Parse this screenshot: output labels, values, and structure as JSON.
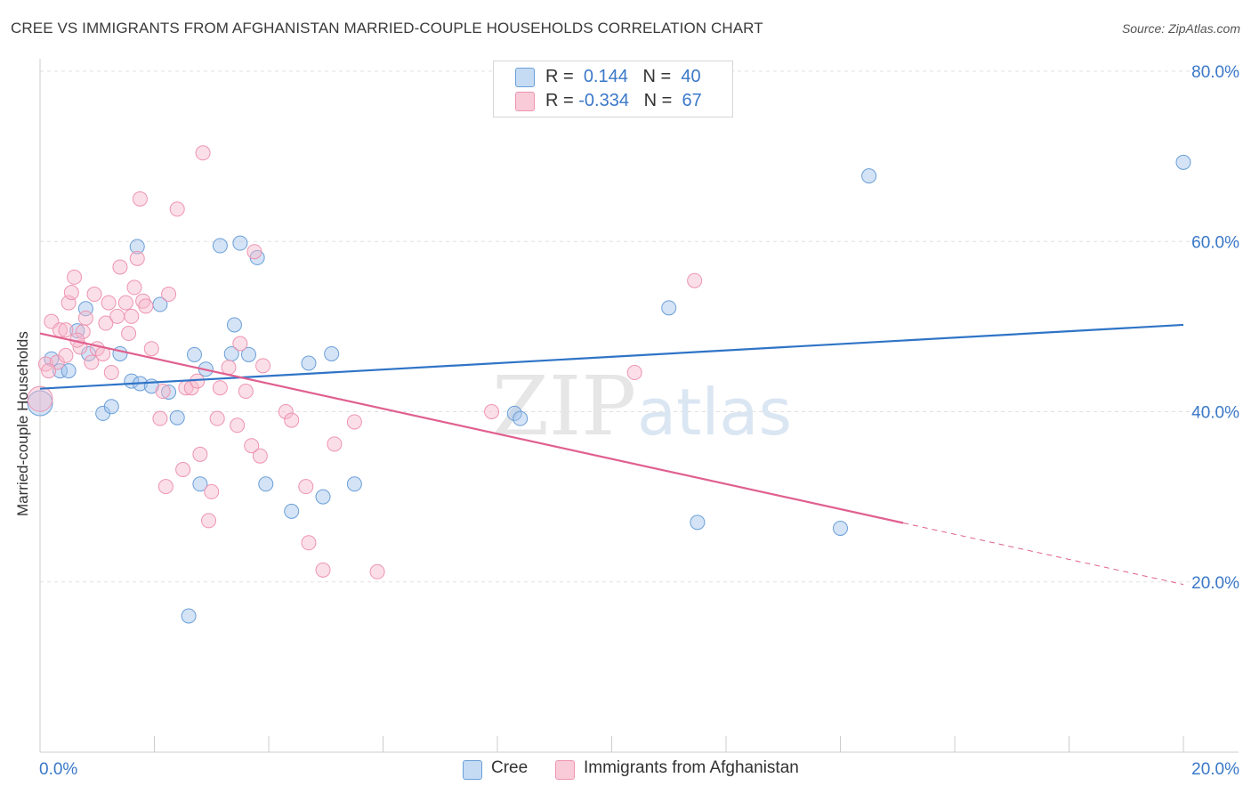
{
  "chart_data": {
    "type": "scatter",
    "title": "CREE VS IMMIGRANTS FROM AFGHANISTAN MARRIED-COUPLE HOUSEHOLDS CORRELATION CHART",
    "source": "Source: ZipAtlas.com",
    "xlabel": "",
    "ylabel": "Married-couple Households",
    "xlim": [
      0,
      20
    ],
    "ylim": [
      0,
      80
    ],
    "x_tick_labels": [
      "0.0%",
      "20.0%"
    ],
    "y_tick_labels": [
      "20.0%",
      "40.0%",
      "60.0%",
      "80.0%"
    ],
    "y_ticks": [
      20,
      40,
      60,
      80
    ],
    "legend": {
      "rows": [
        {
          "r_label": "R =",
          "r_value": "0.144",
          "n_label": "N =",
          "n_value": "40"
        },
        {
          "r_label": "R =",
          "r_value": "-0.334",
          "n_label": "N =",
          "n_value": "67"
        }
      ]
    },
    "watermark": "ZIPatlas",
    "series": [
      {
        "name": "Cree",
        "color": "#9fc2ea",
        "stroke": "#6a9fd8",
        "line_color": "#2f74c7",
        "trend": {
          "x": [
            0,
            20
          ],
          "y": [
            42.7,
            50.2
          ],
          "dashed_from": null
        },
        "points": [
          {
            "x": 0.0,
            "y": 41.0
          },
          {
            "x": 0.2,
            "y": 46.2
          },
          {
            "x": 0.35,
            "y": 44.8
          },
          {
            "x": 0.5,
            "y": 44.8
          },
          {
            "x": 0.65,
            "y": 49.5
          },
          {
            "x": 0.8,
            "y": 52.1
          },
          {
            "x": 1.1,
            "y": 39.8
          },
          {
            "x": 1.25,
            "y": 40.6
          },
          {
            "x": 1.4,
            "y": 46.8
          },
          {
            "x": 1.6,
            "y": 43.6
          },
          {
            "x": 1.7,
            "y": 59.4
          },
          {
            "x": 1.75,
            "y": 43.3
          },
          {
            "x": 1.95,
            "y": 43.0
          },
          {
            "x": 2.1,
            "y": 52.6
          },
          {
            "x": 2.25,
            "y": 42.3
          },
          {
            "x": 2.4,
            "y": 39.3
          },
          {
            "x": 2.6,
            "y": 16.0
          },
          {
            "x": 2.7,
            "y": 46.7
          },
          {
            "x": 2.8,
            "y": 31.5
          },
          {
            "x": 2.9,
            "y": 45.0
          },
          {
            "x": 3.15,
            "y": 59.5
          },
          {
            "x": 3.35,
            "y": 46.8
          },
          {
            "x": 3.4,
            "y": 50.2
          },
          {
            "x": 3.5,
            "y": 59.8
          },
          {
            "x": 3.65,
            "y": 46.7
          },
          {
            "x": 3.8,
            "y": 58.1
          },
          {
            "x": 3.95,
            "y": 31.5
          },
          {
            "x": 4.4,
            "y": 28.3
          },
          {
            "x": 4.7,
            "y": 45.7
          },
          {
            "x": 4.95,
            "y": 30.0
          },
          {
            "x": 5.1,
            "y": 46.8
          },
          {
            "x": 5.5,
            "y": 31.5
          },
          {
            "x": 8.3,
            "y": 39.8
          },
          {
            "x": 8.4,
            "y": 39.2
          },
          {
            "x": 11.0,
            "y": 52.2
          },
          {
            "x": 11.5,
            "y": 27.0
          },
          {
            "x": 14.0,
            "y": 26.3
          },
          {
            "x": 14.5,
            "y": 67.7
          },
          {
            "x": 20.0,
            "y": 69.3
          },
          {
            "x": 0.85,
            "y": 46.8
          }
        ]
      },
      {
        "name": "Immigrants from Afghanistan",
        "color": "#f7b9cc",
        "stroke": "#ee94b0",
        "line_color": "#e0608f",
        "trend": {
          "x": [
            0,
            20
          ],
          "y": [
            49.2,
            19.7
          ],
          "dashed_from": 15.1
        },
        "points": [
          {
            "x": 0.0,
            "y": 41.5
          },
          {
            "x": 0.1,
            "y": 45.6
          },
          {
            "x": 0.2,
            "y": 50.6
          },
          {
            "x": 0.3,
            "y": 45.8
          },
          {
            "x": 0.35,
            "y": 49.6
          },
          {
            "x": 0.45,
            "y": 49.6
          },
          {
            "x": 0.45,
            "y": 46.6
          },
          {
            "x": 0.5,
            "y": 52.8
          },
          {
            "x": 0.55,
            "y": 54.0
          },
          {
            "x": 0.6,
            "y": 55.8
          },
          {
            "x": 0.7,
            "y": 47.6
          },
          {
            "x": 0.75,
            "y": 49.4
          },
          {
            "x": 0.8,
            "y": 51.0
          },
          {
            "x": 0.9,
            "y": 45.8
          },
          {
            "x": 0.95,
            "y": 53.8
          },
          {
            "x": 1.0,
            "y": 47.4
          },
          {
            "x": 1.1,
            "y": 46.8
          },
          {
            "x": 1.15,
            "y": 50.4
          },
          {
            "x": 1.2,
            "y": 52.8
          },
          {
            "x": 1.25,
            "y": 44.6
          },
          {
            "x": 1.35,
            "y": 51.2
          },
          {
            "x": 1.4,
            "y": 57.0
          },
          {
            "x": 1.5,
            "y": 52.8
          },
          {
            "x": 1.55,
            "y": 49.2
          },
          {
            "x": 1.6,
            "y": 51.2
          },
          {
            "x": 1.65,
            "y": 54.6
          },
          {
            "x": 1.7,
            "y": 58.0
          },
          {
            "x": 1.75,
            "y": 65.0
          },
          {
            "x": 1.8,
            "y": 53.0
          },
          {
            "x": 1.85,
            "y": 52.4
          },
          {
            "x": 1.95,
            "y": 47.4
          },
          {
            "x": 2.1,
            "y": 39.2
          },
          {
            "x": 2.15,
            "y": 42.4
          },
          {
            "x": 2.2,
            "y": 31.2
          },
          {
            "x": 2.25,
            "y": 53.8
          },
          {
            "x": 2.4,
            "y": 63.8
          },
          {
            "x": 2.5,
            "y": 33.2
          },
          {
            "x": 2.55,
            "y": 42.8
          },
          {
            "x": 2.65,
            "y": 42.8
          },
          {
            "x": 2.75,
            "y": 43.6
          },
          {
            "x": 2.8,
            "y": 35.0
          },
          {
            "x": 2.85,
            "y": 70.4
          },
          {
            "x": 2.95,
            "y": 27.2
          },
          {
            "x": 3.0,
            "y": 30.6
          },
          {
            "x": 3.1,
            "y": 39.2
          },
          {
            "x": 3.15,
            "y": 42.8
          },
          {
            "x": 3.3,
            "y": 45.2
          },
          {
            "x": 3.45,
            "y": 38.4
          },
          {
            "x": 3.5,
            "y": 48.0
          },
          {
            "x": 3.6,
            "y": 42.4
          },
          {
            "x": 3.7,
            "y": 36.0
          },
          {
            "x": 3.75,
            "y": 58.8
          },
          {
            "x": 3.85,
            "y": 34.8
          },
          {
            "x": 3.9,
            "y": 45.4
          },
          {
            "x": 4.3,
            "y": 40.0
          },
          {
            "x": 4.4,
            "y": 39.0
          },
          {
            "x": 4.65,
            "y": 31.2
          },
          {
            "x": 4.7,
            "y": 24.6
          },
          {
            "x": 4.95,
            "y": 21.4
          },
          {
            "x": 5.15,
            "y": 36.2
          },
          {
            "x": 5.5,
            "y": 38.8
          },
          {
            "x": 5.9,
            "y": 21.2
          },
          {
            "x": 7.9,
            "y": 40.0
          },
          {
            "x": 10.4,
            "y": 44.6
          },
          {
            "x": 11.45,
            "y": 55.4
          },
          {
            "x": 0.15,
            "y": 44.8
          },
          {
            "x": 0.65,
            "y": 48.4
          }
        ]
      }
    ]
  }
}
